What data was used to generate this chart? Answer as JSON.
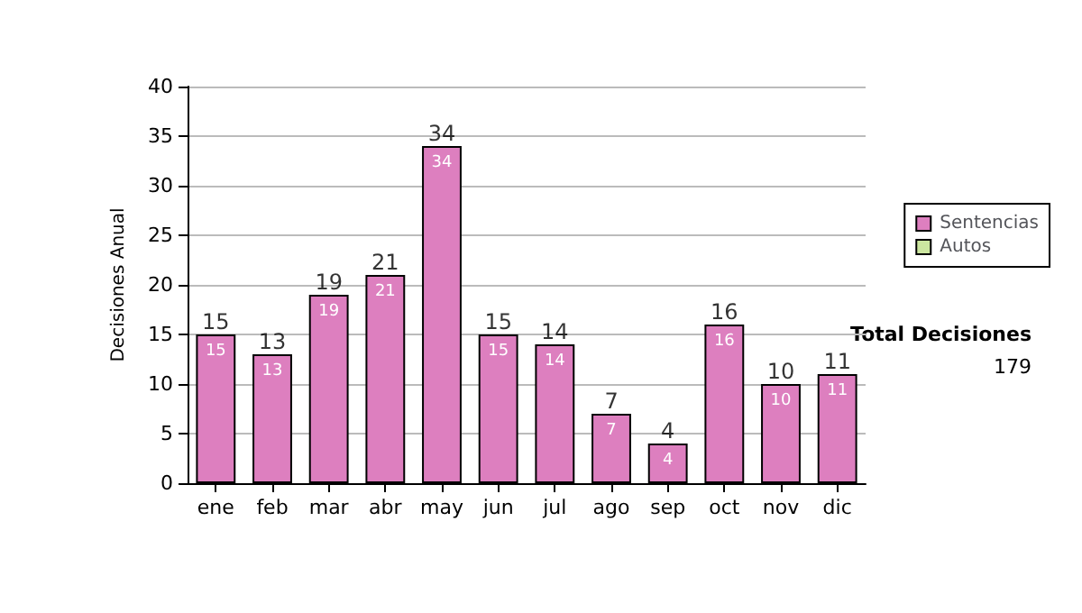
{
  "chart_data": {
    "type": "bar",
    "stacked": true,
    "ylabel": "Decisiones Anual",
    "categories": [
      "ene",
      "feb",
      "mar",
      "abr",
      "may",
      "jun",
      "jul",
      "ago",
      "sep",
      "oct",
      "nov",
      "dic"
    ],
    "series": [
      {
        "name": "Sentencias",
        "color": "#dd7fbf",
        "values": [
          15,
          13,
          19,
          21,
          34,
          15,
          14,
          7,
          4,
          16,
          10,
          11
        ],
        "value_labels": [
          "15",
          "13",
          "19",
          "21",
          "34",
          "15",
          "14",
          "7",
          "4",
          "16",
          "10",
          "11"
        ]
      },
      {
        "name": "Autos",
        "color": "#cce6a0",
        "values": [
          0,
          0,
          0,
          0,
          0,
          0,
          0,
          0,
          0,
          0,
          0,
          0
        ]
      }
    ],
    "totals": [
      "15",
      "13",
      "19",
      "21",
      "34",
      "15",
      "14",
      "7",
      "4",
      "16",
      "10",
      "11"
    ],
    "ylim": [
      0,
      40
    ],
    "yticks": [
      0,
      5,
      10,
      15,
      20,
      25,
      30,
      35,
      40
    ],
    "grid": "y",
    "legend": "right",
    "annotations": [
      "Total Decisiones",
      "179"
    ]
  }
}
